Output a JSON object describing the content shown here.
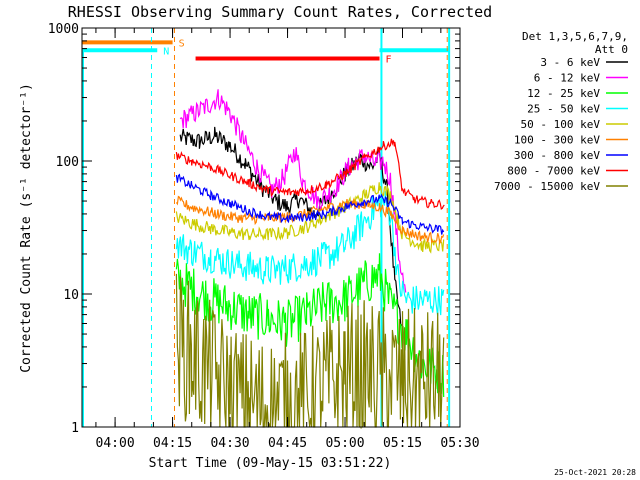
{
  "chart_data": {
    "type": "line",
    "title": "RHESSI Observing Summary Count Rates, Corrected",
    "xlabel": "Start Time (09-May-15 03:51:22)",
    "ylabel": "Corrected Count Rate (s⁻¹ detector⁻¹)",
    "ylog": true,
    "xlim": [
      "03:51:22",
      "05:30:00"
    ],
    "ylim": [
      1,
      1000
    ],
    "x_ticks": [
      "04:00",
      "04:15",
      "04:30",
      "04:45",
      "05:00",
      "05:15",
      "05:30"
    ],
    "y_ticks": [
      "1",
      "10",
      "100",
      "1000"
    ],
    "grid": false,
    "legend_position": "top-right",
    "legend_header": [
      "Det 1,3,5,6,7,9,",
      "Att 0"
    ],
    "timestamp": "25-Oct-2021 20:28",
    "flags": [
      {
        "label": "S",
        "color": "#ff8000",
        "level": 780,
        "start": "03:51:22",
        "end": "04:15:00"
      },
      {
        "label": "N",
        "color": "#00ffff",
        "level": 680,
        "start": "03:51:22",
        "end": "04:11:00"
      },
      {
        "label": "F",
        "color": "#ff0000",
        "level": 590,
        "start": "04:21:00",
        "end": "05:09:00"
      },
      {
        "label": "",
        "color": "#00ffff",
        "level": 680,
        "start": "05:09:00",
        "end": "05:27:00"
      }
    ],
    "vlines": [
      {
        "time": "04:09:30",
        "color": "#00ffff",
        "style": "dashed"
      },
      {
        "time": "04:15:30",
        "color": "#ff8000",
        "style": "dashed"
      },
      {
        "time": "05:09:30",
        "color": "#00ffff",
        "style": "solid"
      },
      {
        "time": "05:26:40",
        "color": "#ff8000",
        "style": "dashed"
      },
      {
        "time": "05:27:10",
        "color": "#00ffff",
        "style": "solid"
      }
    ],
    "series": [
      {
        "name": "3 - 6 keV",
        "color": "#000000",
        "noise": 0.07,
        "points": [
          [
            "04:17:00",
            150
          ],
          [
            "04:22:00",
            140
          ],
          [
            "04:26:00",
            155
          ],
          [
            "04:30:00",
            130
          ],
          [
            "04:34:00",
            95
          ],
          [
            "04:38:00",
            65
          ],
          [
            "04:42:00",
            50
          ],
          [
            "04:45:00",
            45
          ],
          [
            "04:48:00",
            52
          ],
          [
            "04:52:00",
            40
          ],
          [
            "04:56:00",
            55
          ],
          [
            "05:00:00",
            80
          ],
          [
            "05:04:00",
            105
          ],
          [
            "05:07:00",
            90
          ],
          [
            "05:09:00",
            110
          ],
          [
            "05:11:00",
            60
          ],
          [
            "05:13:00",
            12
          ],
          [
            "05:15:00",
            5
          ]
        ]
      },
      {
        "name": "6 - 12 keV",
        "color": "#ff00ff",
        "noise": 0.08,
        "points": [
          [
            "04:17:00",
            200
          ],
          [
            "04:21:00",
            230
          ],
          [
            "04:24:00",
            260
          ],
          [
            "04:27:00",
            300
          ],
          [
            "04:30:00",
            230
          ],
          [
            "04:33:00",
            150
          ],
          [
            "04:37:00",
            90
          ],
          [
            "04:41:00",
            60
          ],
          [
            "04:44:00",
            75
          ],
          [
            "04:47:00",
            120
          ],
          [
            "04:49:00",
            70
          ],
          [
            "04:53:00",
            50
          ],
          [
            "04:57:00",
            60
          ],
          [
            "05:01:00",
            90
          ],
          [
            "05:05:00",
            110
          ],
          [
            "05:08:00",
            95
          ],
          [
            "05:10:00",
            100
          ],
          [
            "05:12:00",
            70
          ],
          [
            "05:14:00",
            20
          ],
          [
            "05:16:00",
            9
          ]
        ]
      },
      {
        "name": "12 - 25 keV",
        "color": "#00ff00",
        "noise": 0.18,
        "points": [
          [
            "04:16:00",
            13
          ],
          [
            "04:20:00",
            11
          ],
          [
            "04:25:00",
            9
          ],
          [
            "04:30:00",
            8
          ],
          [
            "04:35:00",
            7
          ],
          [
            "04:40:00",
            6.5
          ],
          [
            "04:45:00",
            6
          ],
          [
            "04:50:00",
            7
          ],
          [
            "04:55:00",
            8.5
          ],
          [
            "05:00:00",
            9
          ],
          [
            "05:05:00",
            12
          ],
          [
            "05:09:00",
            14
          ],
          [
            "05:12:00",
            8
          ],
          [
            "05:16:00",
            5
          ],
          [
            "05:20:00",
            3
          ],
          [
            "05:26:00",
            2.5
          ]
        ]
      },
      {
        "name": "25 - 50 keV",
        "color": "#00ffff",
        "noise": 0.12,
        "points": [
          [
            "04:16:00",
            24
          ],
          [
            "04:20:00",
            21
          ],
          [
            "04:25:00",
            19
          ],
          [
            "04:30:00",
            17
          ],
          [
            "04:35:00",
            16
          ],
          [
            "04:40:00",
            15
          ],
          [
            "04:45:00",
            15.5
          ],
          [
            "04:50:00",
            17
          ],
          [
            "04:55:00",
            19
          ],
          [
            "05:00:00",
            23
          ],
          [
            "05:04:00",
            32
          ],
          [
            "05:08:00",
            45
          ],
          [
            "05:10:00",
            50
          ],
          [
            "05:12:00",
            40
          ],
          [
            "05:14:00",
            12
          ],
          [
            "05:16:00",
            9
          ],
          [
            "05:20:00",
            9
          ],
          [
            "05:26:00",
            9
          ]
        ]
      },
      {
        "name": "50 - 100 keV",
        "color": "#cccc00",
        "noise": 0.05,
        "points": [
          [
            "04:16:00",
            38
          ],
          [
            "04:20:00",
            34
          ],
          [
            "04:25:00",
            31
          ],
          [
            "04:30:00",
            29
          ],
          [
            "04:35:00",
            28
          ],
          [
            "04:40:00",
            28
          ],
          [
            "04:45:00",
            29
          ],
          [
            "04:50:00",
            32
          ],
          [
            "04:55:00",
            38
          ],
          [
            "05:00:00",
            45
          ],
          [
            "05:05:00",
            55
          ],
          [
            "05:09:00",
            65
          ],
          [
            "05:12:00",
            55
          ],
          [
            "05:15:00",
            28
          ],
          [
            "05:20:00",
            23
          ],
          [
            "05:26:00",
            23
          ]
        ]
      },
      {
        "name": "100 - 300 keV",
        "color": "#ff8000",
        "noise": 0.04,
        "points": [
          [
            "04:16:00",
            50
          ],
          [
            "04:20:00",
            45
          ],
          [
            "04:25:00",
            41
          ],
          [
            "04:30:00",
            38
          ],
          [
            "04:35:00",
            37
          ],
          [
            "04:40:00",
            37
          ],
          [
            "04:45:00",
            38
          ],
          [
            "04:50:00",
            40
          ],
          [
            "04:55:00",
            44
          ],
          [
            "05:00:00",
            48
          ],
          [
            "05:05:00",
            47
          ],
          [
            "05:09:00",
            45
          ],
          [
            "05:12:00",
            40
          ],
          [
            "05:15:00",
            30
          ],
          [
            "05:20:00",
            27
          ],
          [
            "05:26:00",
            26
          ]
        ]
      },
      {
        "name": "300 - 800 keV",
        "color": "#0000ff",
        "noise": 0.035,
        "points": [
          [
            "04:16:00",
            75
          ],
          [
            "04:20:00",
            65
          ],
          [
            "04:25:00",
            55
          ],
          [
            "04:30:00",
            48
          ],
          [
            "04:35:00",
            42
          ],
          [
            "04:40:00",
            38
          ],
          [
            "04:45:00",
            37
          ],
          [
            "04:50:00",
            38
          ],
          [
            "04:55:00",
            40
          ],
          [
            "05:00:00",
            45
          ],
          [
            "05:05:00",
            50
          ],
          [
            "05:09:00",
            52
          ],
          [
            "05:12:00",
            48
          ],
          [
            "05:15:00",
            35
          ],
          [
            "05:20:00",
            32
          ],
          [
            "05:26:00",
            30
          ]
        ]
      },
      {
        "name": "800 - 7000 keV",
        "color": "#ff0000",
        "noise": 0.035,
        "points": [
          [
            "04:16:00",
            110
          ],
          [
            "04:20:00",
            100
          ],
          [
            "04:25:00",
            90
          ],
          [
            "04:30:00",
            78
          ],
          [
            "04:35:00",
            68
          ],
          [
            "04:40:00",
            60
          ],
          [
            "04:45:00",
            58
          ],
          [
            "04:50:00",
            60
          ],
          [
            "04:55:00",
            66
          ],
          [
            "05:00:00",
            80
          ],
          [
            "05:05:00",
            105
          ],
          [
            "05:10:00",
            130
          ],
          [
            "05:13:00",
            140
          ],
          [
            "05:15:00",
            60
          ],
          [
            "05:18:00",
            52
          ],
          [
            "05:22:00",
            48
          ],
          [
            "05:26:00",
            47
          ]
        ]
      },
      {
        "name": "7000 - 15000 keV",
        "color": "#808000",
        "noise": 0.55,
        "points": [
          [
            "04:16:00",
            4.5
          ],
          [
            "04:20:00",
            3.5
          ],
          [
            "04:25:00",
            2.5
          ],
          [
            "04:30:00",
            1.8
          ],
          [
            "04:35:00",
            1.5
          ],
          [
            "04:40:00",
            1.4
          ],
          [
            "04:45:00",
            1.5
          ],
          [
            "04:50:00",
            1.6
          ],
          [
            "04:55:00",
            2
          ],
          [
            "05:00:00",
            2.5
          ],
          [
            "05:05:00",
            2.6
          ],
          [
            "05:10:00",
            2.4
          ],
          [
            "05:15:00",
            2.3
          ],
          [
            "05:20:00",
            2.2
          ],
          [
            "05:26:00",
            2.2
          ]
        ]
      }
    ]
  }
}
